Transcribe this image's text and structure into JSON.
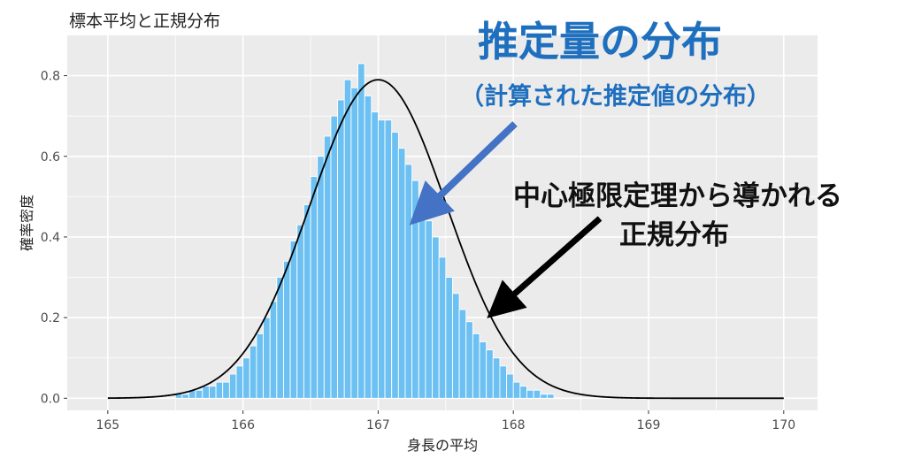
{
  "chart_data": {
    "type": "bar",
    "title": "標本平均と正規分布",
    "xlabel": "身長の平均",
    "ylabel": "確率密度",
    "xlim": [
      164.7,
      170.25
    ],
    "ylim": [
      -0.03,
      0.9
    ],
    "x_ticks": [
      165,
      166,
      167,
      168,
      169,
      170
    ],
    "y_ticks": [
      0.0,
      0.2,
      0.4,
      0.6,
      0.8
    ],
    "x_tick_labels": [
      "165",
      "166",
      "167",
      "168",
      "169",
      "170"
    ],
    "y_tick_labels": [
      "0.0",
      "0.2",
      "0.4",
      "0.6",
      "0.8"
    ],
    "grid": true,
    "bin_width": 0.05,
    "bins_start": 165.5,
    "histogram_values": [
      0.01,
      0.01,
      0.02,
      0.02,
      0.03,
      0.03,
      0.04,
      0.04,
      0.06,
      0.08,
      0.1,
      0.13,
      0.16,
      0.2,
      0.24,
      0.3,
      0.34,
      0.39,
      0.43,
      0.48,
      0.55,
      0.6,
      0.65,
      0.7,
      0.74,
      0.79,
      0.77,
      0.83,
      0.75,
      0.71,
      0.69,
      0.69,
      0.66,
      0.62,
      0.58,
      0.54,
      0.49,
      0.44,
      0.4,
      0.35,
      0.3,
      0.26,
      0.22,
      0.19,
      0.16,
      0.14,
      0.12,
      0.1,
      0.08,
      0.06,
      0.04,
      0.03,
      0.02,
      0.02,
      0.01,
      0.01
    ],
    "bar_color": "#6cc0f2",
    "curve": {
      "type": "normal-density",
      "mean": 167.0,
      "sd": 0.505,
      "color": "#000000"
    },
    "annotations": {
      "estimator_title": "推定量の分布",
      "estimator_subtitle": "（計算された推定値の分布）",
      "clt_line1": "中心極限定理から導かれる",
      "clt_line2": "正規分布"
    },
    "colors": {
      "panel_bg": "#ebebeb",
      "grid": "#ffffff",
      "annotation_blue": "#1f6fbf",
      "arrow_blue": "#4472c4",
      "arrow_black": "#000000"
    }
  }
}
